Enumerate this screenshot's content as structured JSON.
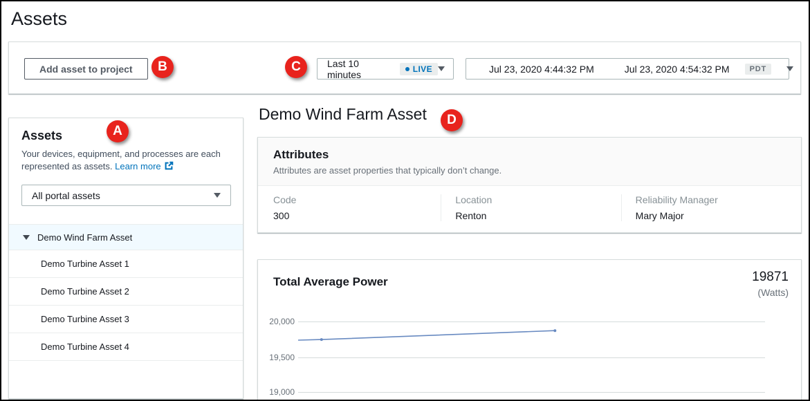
{
  "page": {
    "title": "Assets"
  },
  "callouts": {
    "a": "A",
    "b": "B",
    "c": "C",
    "d": "D",
    "color": "#e8231d"
  },
  "toolbar": {
    "add_asset_button": "Add asset to project",
    "time_range": {
      "selected": "Last 10 minutes",
      "live_badge": "LIVE"
    },
    "date_range": {
      "start": "Jul 23, 2020 4:44:32 PM",
      "end": "Jul 23, 2020 4:54:32 PM",
      "timezone_badge": "PDT"
    }
  },
  "sidebar": {
    "title": "Assets",
    "description": "Your devices, equipment, and processes are each represented as assets.",
    "learn_more_link": "Learn more",
    "asset_filter": {
      "selected": "All portal assets"
    },
    "tree": {
      "root": "Demo Wind Farm Asset",
      "children": [
        "Demo Turbine Asset 1",
        "Demo Turbine Asset 2",
        "Demo Turbine Asset 3",
        "Demo Turbine Asset 4"
      ]
    }
  },
  "main": {
    "title": "Demo Wind Farm Asset",
    "attributes_panel": {
      "title": "Attributes",
      "description": "Attributes are asset properties that typically don’t change.",
      "items": [
        {
          "label": "Code",
          "value": "300"
        },
        {
          "label": "Location",
          "value": "Renton"
        },
        {
          "label": "Reliability Manager",
          "value": "Mary Major"
        }
      ]
    }
  },
  "chart_data": {
    "type": "line",
    "title": "Total Average Power",
    "latest_value": "19871",
    "unit_label": "(Watts)",
    "line_color": "#688ac1",
    "accent_color": "#0073bb",
    "grid": "horizontal",
    "legend": "none",
    "y_ticks": [
      {
        "value": 20000,
        "label": "20,000"
      },
      {
        "value": 19500,
        "label": "19,500"
      },
      {
        "value": 19000,
        "label": "19,000"
      }
    ],
    "ylim": [
      18814,
      20216
    ],
    "x_axis": {
      "window": "Last 10 minutes",
      "start": "Jul 23, 2020 4:44:32 PM",
      "end": "Jul 23, 2020 4:54:32 PM",
      "tick_labels_visible": false
    },
    "series": [
      {
        "name": "Total Average Power",
        "points": [
          {
            "x": 0.0,
            "y": 19736
          },
          {
            "x": 0.05,
            "y": 19744
          },
          {
            "x": 0.55,
            "y": 19871
          }
        ]
      }
    ]
  }
}
